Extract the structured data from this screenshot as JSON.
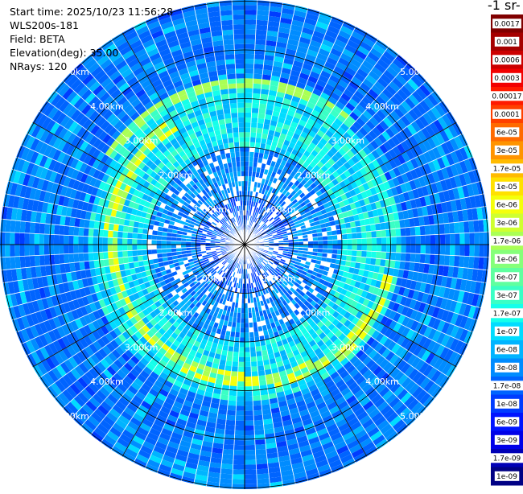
{
  "header": {
    "start_time": "Start time: 2025/10/23 11:56:28",
    "instrument": "WLS200s-181",
    "field": "Field: BETA",
    "elevation": "Elevation(deg): 35.00",
    "nrays": "NRays: 120"
  },
  "chart_data": {
    "type": "heatmap",
    "projection": "polar",
    "rays": 120,
    "range_ring_labels_km": [
      "1.00km",
      "2.00km",
      "3.00km",
      "4.00km",
      "5.00km"
    ],
    "range_rings_km": [
      1,
      2,
      3,
      4,
      5
    ],
    "max_range_km": 5.0,
    "colorbar": {
      "unit_label": "-1 sr-",
      "tick_labels": [
        "0.0017",
        "0.001",
        "0.0006",
        "0.0003",
        "0.00017",
        "0.0001",
        "6e-05",
        "3e-05",
        "1.7e-05",
        "1e-05",
        "6e-06",
        "3e-06",
        "1.7e-06",
        "1e-06",
        "6e-07",
        "3e-07",
        "1.7e-07",
        "1e-07",
        "6e-08",
        "3e-08",
        "1.7e-08",
        "1e-08",
        "6e-09",
        "3e-09",
        "1.7e-09",
        "1e-09"
      ],
      "colors": [
        "#800000",
        "#a50000",
        "#cc0000",
        "#f20000",
        "#ff1a00",
        "#ff4000",
        "#ff6a00",
        "#ff9400",
        "#ffbb00",
        "#ffe100",
        "#f4ff0b",
        "#cfff30",
        "#aaff55",
        "#85ff7a",
        "#5fff9f",
        "#3affc5",
        "#15ffea",
        "#00dcff",
        "#00b4ff",
        "#008cff",
        "#0064ff",
        "#003cff",
        "#0014ff",
        "#0000e8",
        "#0000b6",
        "#000084"
      ]
    }
  }
}
